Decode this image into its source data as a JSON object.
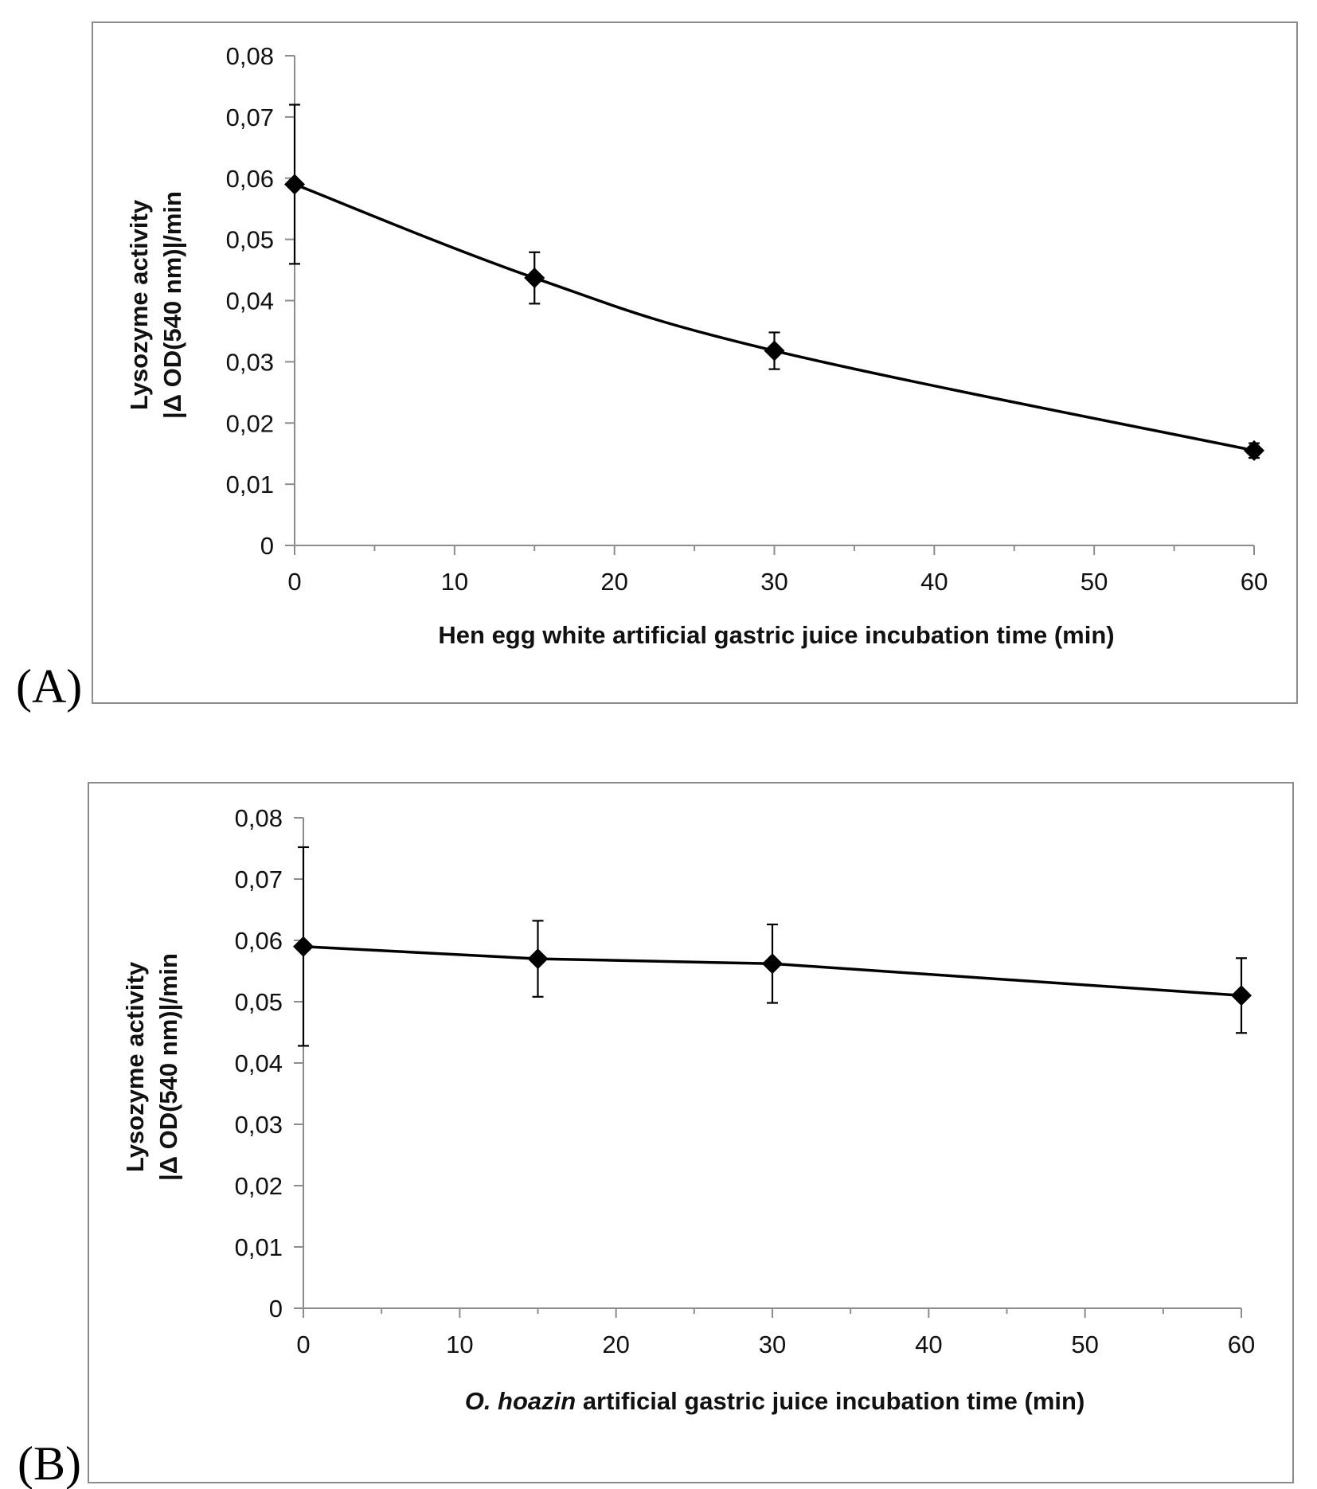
{
  "chart_data": [
    {
      "panel_label": "(A)",
      "type": "line",
      "smooth": true,
      "x": [
        0,
        15,
        30,
        60
      ],
      "values": [
        0.059,
        0.0437,
        0.0318,
        0.0155
      ],
      "error": [
        0.013,
        0.0042,
        0.003,
        0.0012
      ],
      "xlim": [
        0,
        60
      ],
      "ylim": [
        0,
        0.08
      ],
      "x_major_ticks": [
        0,
        10,
        20,
        30,
        40,
        50,
        60
      ],
      "x_minor_ticks": [
        5,
        15,
        25,
        35,
        45,
        55
      ],
      "y_ticks": [
        0,
        0.01,
        0.02,
        0.03,
        0.04,
        0.05,
        0.06,
        0.07,
        0.08
      ],
      "x_tick_labels": [
        "0",
        "10",
        "20",
        "30",
        "40",
        "50",
        "60"
      ],
      "y_tick_labels": [
        "0",
        "0,01",
        "0,02",
        "0,03",
        "0,04",
        "0,05",
        "0,06",
        "0,07",
        "0,08"
      ],
      "xlabel": {
        "prefix": "",
        "italic": "",
        "suffix": "Hen egg white artificial gastric juice incubation time (min)"
      },
      "ylabel": [
        "Lysozyme activity",
        "|Δ OD(540 nm)|/min"
      ],
      "marker": "diamond",
      "color": "#000000"
    },
    {
      "panel_label": "(B)",
      "type": "line",
      "smooth": false,
      "x": [
        0,
        15,
        30,
        60
      ],
      "values": [
        0.059,
        0.057,
        0.0562,
        0.051
      ],
      "error": [
        0.0162,
        0.0062,
        0.0064,
        0.0061
      ],
      "xlim": [
        0,
        60
      ],
      "ylim": [
        0,
        0.08
      ],
      "x_major_ticks": [
        0,
        10,
        20,
        30,
        40,
        50,
        60
      ],
      "x_minor_ticks": [
        5,
        15,
        25,
        35,
        45,
        55
      ],
      "y_ticks": [
        0,
        0.01,
        0.02,
        0.03,
        0.04,
        0.05,
        0.06,
        0.07,
        0.08
      ],
      "x_tick_labels": [
        "0",
        "10",
        "20",
        "30",
        "40",
        "50",
        "60"
      ],
      "y_tick_labels": [
        "0",
        "0,01",
        "0,02",
        "0,03",
        "0,04",
        "0,05",
        "0,06",
        "0,07",
        "0,08"
      ],
      "xlabel": {
        "prefix": "",
        "italic": "O. hoazin",
        "suffix": " artificial gastric juice incubation time (min)"
      },
      "ylabel": [
        "Lysozyme activity",
        "|Δ OD(540 nm)|/min"
      ],
      "marker": "diamond",
      "color": "#000000"
    }
  ]
}
